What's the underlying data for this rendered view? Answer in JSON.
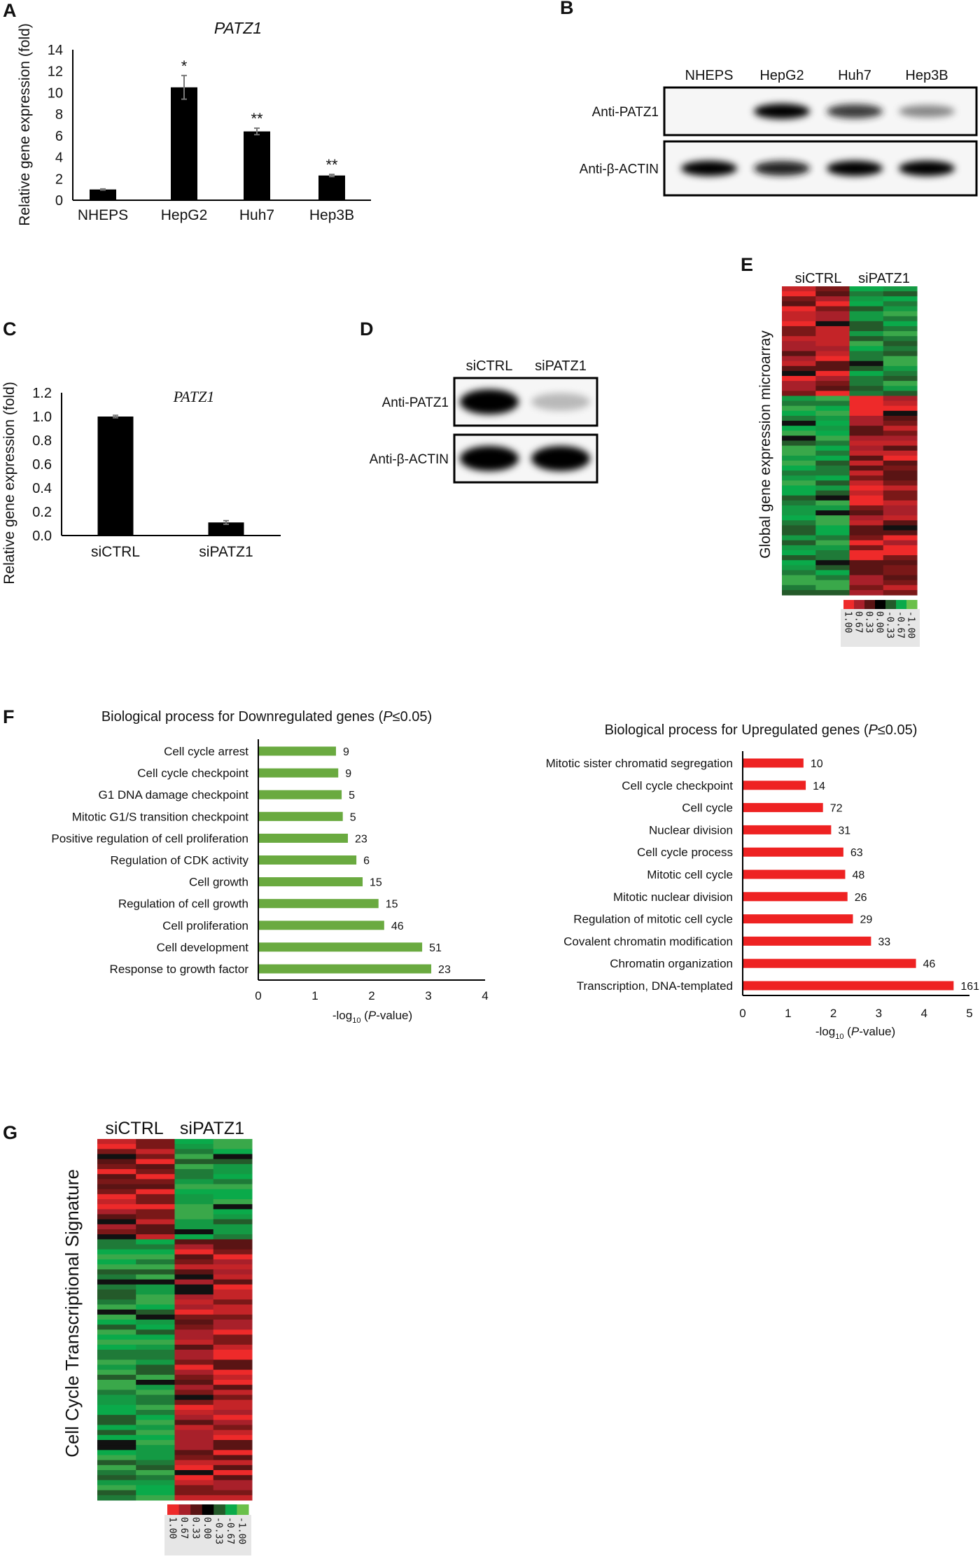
{
  "panel_labels": {
    "a": "A",
    "b": "B",
    "c": "C",
    "d": "D",
    "e": "E",
    "f": "F",
    "g": "G"
  },
  "chart_data": [
    {
      "id": "A",
      "type": "bar",
      "title": "PATZ1",
      "ylabel": "Relative gene expression (fold)",
      "xlabel": "",
      "categories": [
        "NHEPS",
        "HepG2",
        "Huh7",
        "Hep3B"
      ],
      "values": [
        1.0,
        10.5,
        6.4,
        2.3
      ],
      "errors": [
        0.05,
        1.1,
        0.3,
        0.1
      ],
      "significance": [
        "",
        "*",
        "**",
        "**"
      ],
      "ylim": [
        0,
        14
      ],
      "yticks": [
        "0",
        "2",
        "4",
        "6",
        "8",
        "10",
        "12",
        "14"
      ],
      "color": "#000000"
    },
    {
      "id": "C",
      "type": "bar",
      "title": "PATZ1",
      "ylabel": "Relative gene expression (fold)",
      "xlabel": "",
      "categories": [
        "siCTRL",
        "siPATZ1"
      ],
      "values": [
        1.0,
        0.11
      ],
      "errors": [
        0.01,
        0.015
      ],
      "ylim": [
        0,
        1.2
      ],
      "yticks": [
        "0.0",
        "0.2",
        "0.4",
        "0.6",
        "0.8",
        "1.0",
        "1.2"
      ],
      "color": "#000000"
    },
    {
      "id": "F-down",
      "type": "bar",
      "orientation": "horizontal",
      "title_main": "Biological process for Downregulated genes (",
      "title_p": "P",
      "title_end": "≤0.05)",
      "xlabel_pre": "-log",
      "xlabel_sub": "10",
      "xlabel_mid": " (",
      "xlabel_p": "P",
      "xlabel_end": "-value)",
      "categories": [
        "Cell cycle arrest",
        "Cell cycle checkpoint",
        "G1 DNA damage checkpoint",
        "Mitotic G1/S transition checkpoint",
        "Positive regulation of cell proliferation",
        "Regulation of CDK activity",
        "Cell growth",
        "Regulation of cell growth",
        "Cell proliferation",
        "Cell development",
        "Response to growth factor"
      ],
      "values": [
        1.37,
        1.41,
        1.47,
        1.49,
        1.58,
        1.73,
        1.84,
        2.12,
        2.22,
        2.89,
        3.05
      ],
      "gene_counts": [
        "9",
        "9",
        "5",
        "5",
        "23",
        "6",
        "15",
        "15",
        "46",
        "51",
        "23"
      ],
      "xlim": [
        0,
        4
      ],
      "xticks": [
        "0",
        "1",
        "2",
        "3",
        "4"
      ],
      "color": "#6aaa40"
    },
    {
      "id": "F-up",
      "type": "bar",
      "orientation": "horizontal",
      "title_main": "Biological process for Upregulated genes (",
      "title_p": "P",
      "title_end": "≤0.05)",
      "xlabel_pre": "-log",
      "xlabel_sub": "10",
      "xlabel_mid": " (",
      "xlabel_p": "P",
      "xlabel_end": "-value)",
      "categories": [
        "Mitotic sister chromatid segregation",
        "Cell cycle checkpoint",
        "Cell cycle",
        "Nuclear division",
        "Cell cycle process",
        "Mitotic cell cycle",
        "Mitotic nuclear division",
        "Regulation of mitotic cell cycle",
        "Covalent chromatin modification",
        "Chromatin organization",
        "Transcription, DNA-templated"
      ],
      "values": [
        1.34,
        1.39,
        1.77,
        1.95,
        2.22,
        2.26,
        2.31,
        2.43,
        2.83,
        3.82,
        4.65
      ],
      "gene_counts": [
        "10",
        "14",
        "72",
        "31",
        "63",
        "48",
        "26",
        "29",
        "33",
        "46",
        "161"
      ],
      "xlim": [
        0,
        5
      ],
      "xticks": [
        "0",
        "1",
        "2",
        "3",
        "4",
        "5"
      ],
      "color": "#ee2222"
    },
    {
      "id": "E",
      "type": "heatmap",
      "ylabel": "Global gene expression microarray",
      "groups": [
        "siCTRL",
        "siPATZ1"
      ],
      "columns": 4,
      "legend_values": [
        "1.00",
        "0.67",
        "0.33",
        "0.00",
        "-0.33",
        "-0.67",
        "-1.00"
      ],
      "legend_colors": [
        "#ee2a2a",
        "#a8202a",
        "#5a1414",
        "#000000",
        "#245a2a",
        "#0aaa4a",
        "#6ac04a"
      ]
    },
    {
      "id": "G",
      "type": "heatmap",
      "ylabel": "Cell Cycle Transcriptional Signature",
      "groups": [
        "siCTRL",
        "siPATZ1"
      ],
      "columns": 4,
      "legend_values": [
        "1.00",
        "0.67",
        "0.33",
        "0.00",
        "-0.33",
        "-0.67",
        "-1.00"
      ],
      "legend_colors": [
        "#ee2a2a",
        "#a8202a",
        "#5a1414",
        "#000000",
        "#245a2a",
        "#0aaa4a",
        "#6ac04a"
      ]
    }
  ],
  "blot_b": {
    "lanes": [
      "NHEPS",
      "HepG2",
      "Huh7",
      "Hep3B"
    ],
    "rows": [
      "Anti-PATZ1",
      "Anti-β-ACTIN"
    ],
    "patz1_intensity": [
      0.0,
      1.0,
      0.8,
      0.5
    ],
    "actin_intensity": [
      1.0,
      0.9,
      1.0,
      1.0
    ]
  },
  "blot_d": {
    "lanes": [
      "siCTRL",
      "siPATZ1"
    ],
    "rows": [
      "Anti-PATZ1",
      "Anti-β-ACTIN"
    ],
    "patz1_intensity": [
      1.0,
      0.25
    ],
    "actin_intensity": [
      1.0,
      1.0
    ]
  }
}
